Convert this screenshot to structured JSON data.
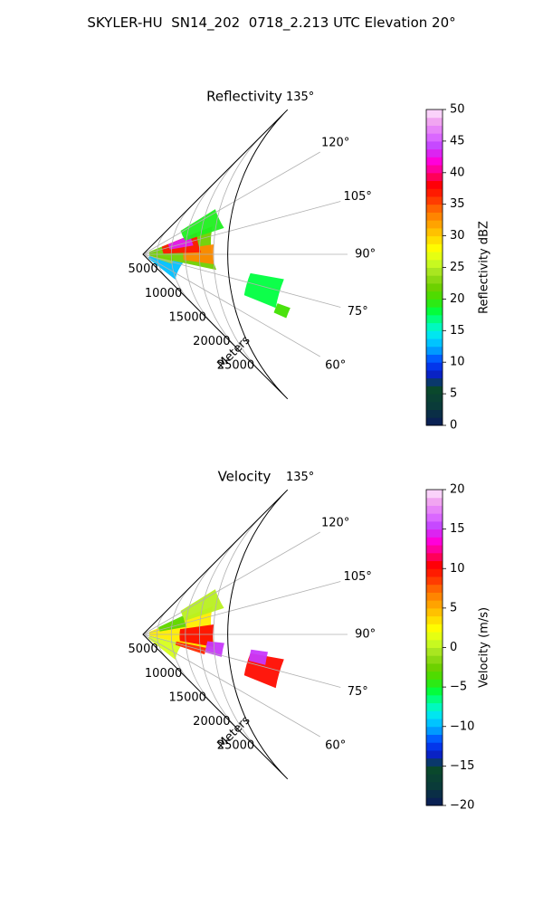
{
  "figure": {
    "title": "SKYLER-HU  SN14_202  0718_2.213 UTC Elevation 20°"
  },
  "chart_data": [
    {
      "type": "heatmap",
      "title": "Reflectivity",
      "projection": "polar-sector",
      "radial_label": "Meters",
      "radial_ticks": [
        5000,
        10000,
        15000,
        20000,
        25000
      ],
      "radial_tick_labels": [
        "5000",
        "10000",
        "15000",
        "20000",
        "25000"
      ],
      "rlim": [
        0,
        30000
      ],
      "theta_range_deg": [
        45,
        135
      ],
      "theta_ticks": [
        60,
        75,
        90,
        105,
        120,
        135
      ],
      "theta_tick_labels": [
        "60°",
        "75°",
        "90°",
        "105°",
        "120°",
        "135°"
      ],
      "grid": true,
      "colorbar": {
        "label": "Reflectivity dBZ",
        "range": [
          0,
          50
        ],
        "ticks": [
          0,
          5,
          10,
          15,
          20,
          25,
          30,
          35,
          40,
          45,
          50
        ],
        "tick_labels": [
          "0",
          "5",
          "10",
          "15",
          "20",
          "25",
          "30",
          "35",
          "40",
          "45",
          "50"
        ]
      },
      "regions": [
        {
          "theta_deg": [
            52,
            78
          ],
          "r": [
            1000,
            6000
          ],
          "value": 13
        },
        {
          "theta_deg": [
            72,
            82
          ],
          "r": [
            1500,
            4500
          ],
          "value": 24
        },
        {
          "theta_deg": [
            78,
            112
          ],
          "r": [
            1000,
            11000
          ],
          "value": 22
        },
        {
          "theta_deg": [
            82,
            98
          ],
          "r": [
            6000,
            10500
          ],
          "value": 33
        },
        {
          "theta_deg": [
            92,
            112
          ],
          "r": [
            3000,
            8500
          ],
          "value": 37
        },
        {
          "theta_deg": [
            100,
            112
          ],
          "r": [
            4000,
            7500
          ],
          "value": 43
        },
        {
          "theta_deg": [
            108,
            122
          ],
          "r": [
            6500,
            12500
          ],
          "value": 19
        },
        {
          "theta_deg": [
            68,
            80
          ],
          "r": [
            16000,
            21000
          ],
          "value": 18
        },
        {
          "theta_deg": [
            66,
            70
          ],
          "r": [
            21000,
            23000
          ],
          "value": 20
        }
      ]
    },
    {
      "type": "heatmap",
      "title": "Velocity",
      "projection": "polar-sector",
      "radial_label": "Meters",
      "radial_ticks": [
        5000,
        10000,
        15000,
        20000,
        25000
      ],
      "radial_tick_labels": [
        "5000",
        "10000",
        "15000",
        "20000",
        "25000"
      ],
      "rlim": [
        0,
        30000
      ],
      "theta_range_deg": [
        45,
        135
      ],
      "theta_ticks": [
        60,
        75,
        90,
        105,
        120,
        135
      ],
      "theta_tick_labels": [
        "60°",
        "75°",
        "90°",
        "105°",
        "120°",
        "135°"
      ],
      "grid": true,
      "colorbar": {
        "label": "Velocity (m/s)",
        "range": [
          -20,
          20
        ],
        "ticks": [
          -20,
          -15,
          -10,
          -5,
          0,
          5,
          10,
          15,
          20
        ],
        "tick_labels": [
          "−20",
          "−15",
          "−10",
          "−5",
          "0",
          "5",
          "10",
          "15",
          "20"
        ]
      },
      "regions": [
        {
          "theta_deg": [
            52,
            78
          ],
          "r": [
            1000,
            6000
          ],
          "value": 1
        },
        {
          "theta_deg": [
            72,
            80
          ],
          "r": [
            5000,
            9500
          ],
          "value": 9
        },
        {
          "theta_deg": [
            78,
            112
          ],
          "r": [
            1000,
            11000
          ],
          "value": 3
        },
        {
          "theta_deg": [
            80,
            98
          ],
          "r": [
            5500,
            10500
          ],
          "value": 10
        },
        {
          "theta_deg": [
            74,
            84
          ],
          "r": [
            9500,
            12000
          ],
          "value": 15
        },
        {
          "theta_deg": [
            100,
            115
          ],
          "r": [
            2500,
            6500
          ],
          "value": -3
        },
        {
          "theta_deg": [
            108,
            122
          ],
          "r": [
            6500,
            12500
          ],
          "value": 0
        },
        {
          "theta_deg": [
            68,
            80
          ],
          "r": [
            16000,
            21000
          ],
          "value": 10
        },
        {
          "theta_deg": [
            76,
            82
          ],
          "r": [
            16000,
            18500
          ],
          "value": 15
        }
      ]
    }
  ]
}
